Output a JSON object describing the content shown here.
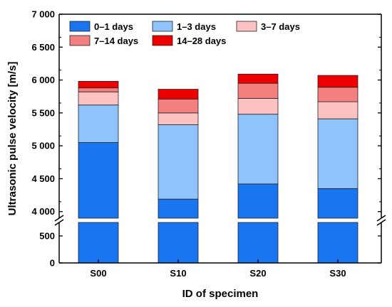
{
  "chart_data": {
    "type": "bar",
    "stacked": true,
    "categories": [
      "S00",
      "S10",
      "S20",
      "S30"
    ],
    "xlabel": "ID of specimen",
    "ylabel": "Ultrasonic pulse velocity [m/s]",
    "axis_break": {
      "lower_range": [
        0,
        750
      ],
      "upper_range": [
        3900,
        7000
      ]
    },
    "lower_ticks": [
      0,
      500
    ],
    "upper_ticks": [
      4000,
      4500,
      5000,
      5500,
      6000,
      6500,
      7000
    ],
    "tick_labels": {
      "0": "0",
      "500": "500",
      "4000": "4 000",
      "4500": "4 500",
      "5000": "5 000",
      "5500": "5 500",
      "6000": "6 000",
      "6500": "6 500",
      "7000": "7 000"
    },
    "series": [
      {
        "name": "0–1 days",
        "color": "#1a75f0",
        "values": [
          5050,
          4190,
          4420,
          4350
        ]
      },
      {
        "name": "1–3 days",
        "color": "#8ec3fb",
        "values": [
          570,
          1130,
          1060,
          1060
        ]
      },
      {
        "name": "3–7 days",
        "color": "#fcc2c2",
        "values": [
          200,
          180,
          240,
          260
        ]
      },
      {
        "name": "7–14 days",
        "color": "#f47f7f",
        "values": [
          60,
          210,
          230,
          220
        ]
      },
      {
        "name": "14–28 days",
        "color": "#ee0000",
        "values": [
          100,
          150,
          140,
          180
        ]
      }
    ],
    "legend_position": "top-left",
    "grid": false
  }
}
